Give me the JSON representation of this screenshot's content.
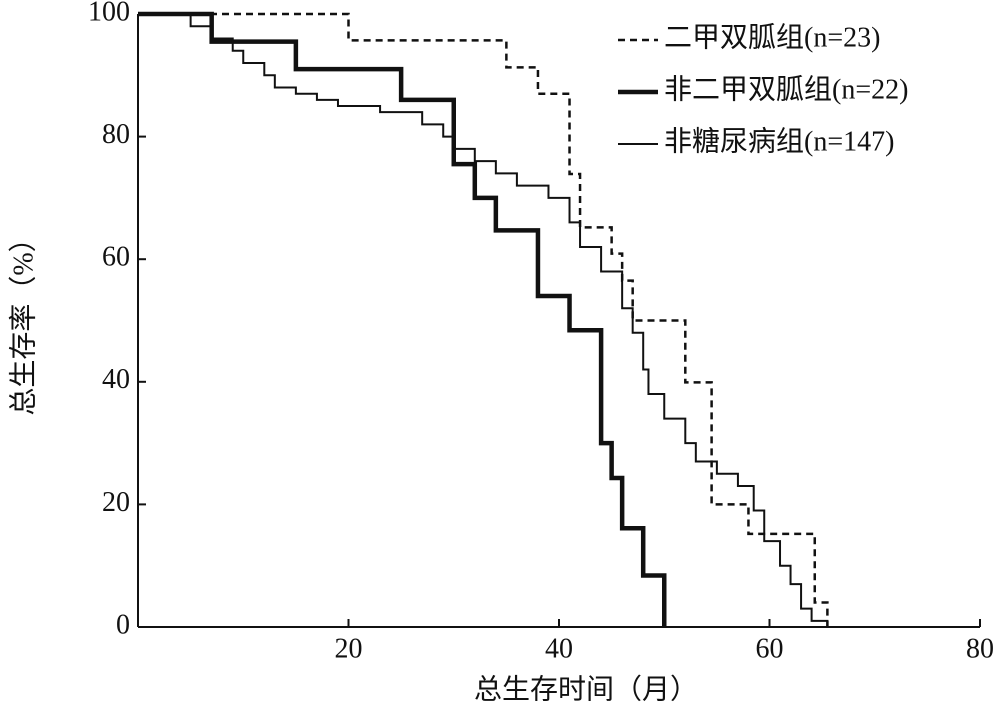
{
  "chart_data": {
    "type": "step",
    "xlabel": "总生存时间（月）",
    "ylabel": "总生存率（%）",
    "xlim": [
      0,
      80
    ],
    "xticks": [
      20,
      40,
      60,
      80
    ],
    "ylim": [
      0,
      100
    ],
    "yticks": [
      0,
      20,
      40,
      60,
      80,
      100
    ],
    "legend": "upper right",
    "series": [
      {
        "name": "二甲双胍组(n=23)",
        "color": "#111111",
        "line_style": "dashed",
        "line_width": 2.5,
        "x": [
          0,
          20,
          35,
          38,
          41,
          42,
          45,
          46,
          47,
          52,
          54.5,
          58,
          64.3,
          65.5
        ],
        "values": [
          100,
          95.7,
          91.3,
          87,
          73.9,
          65.2,
          60.9,
          56.5,
          50,
          39.9,
          20,
          15.2,
          4,
          0
        ]
      },
      {
        "name": "非二甲双胍组(n=22)",
        "color": "#111111",
        "line_style": "solid",
        "line_width": 4.5,
        "x": [
          0,
          7,
          15,
          25,
          30,
          32,
          34,
          38,
          41,
          44,
          45,
          46,
          48,
          50
        ],
        "values": [
          100,
          95.5,
          91,
          86,
          75.5,
          70,
          64.7,
          54,
          48.4,
          30,
          24.3,
          16.1,
          8.4,
          0
        ]
      },
      {
        "name": "非糖尿病组(n=147)",
        "color": "#111111",
        "line_style": "solid",
        "line_width": 2,
        "x": [
          0,
          5,
          7,
          9,
          10,
          12,
          13,
          15,
          17,
          19,
          23,
          27,
          29,
          30,
          32,
          34,
          36,
          39,
          41,
          42,
          44,
          46,
          47,
          48,
          48.5,
          50,
          52,
          53,
          55,
          57,
          58.5,
          59.5,
          61,
          62,
          63,
          64,
          65.5
        ],
        "values": [
          100,
          98,
          96,
          94,
          92,
          90,
          88,
          87,
          86,
          85,
          84,
          82,
          80,
          78,
          76,
          74,
          72,
          70,
          66,
          62,
          58,
          52,
          48,
          42,
          38,
          34,
          30,
          27,
          25,
          23,
          19,
          14,
          10,
          7,
          3,
          1,
          0
        ]
      }
    ]
  }
}
